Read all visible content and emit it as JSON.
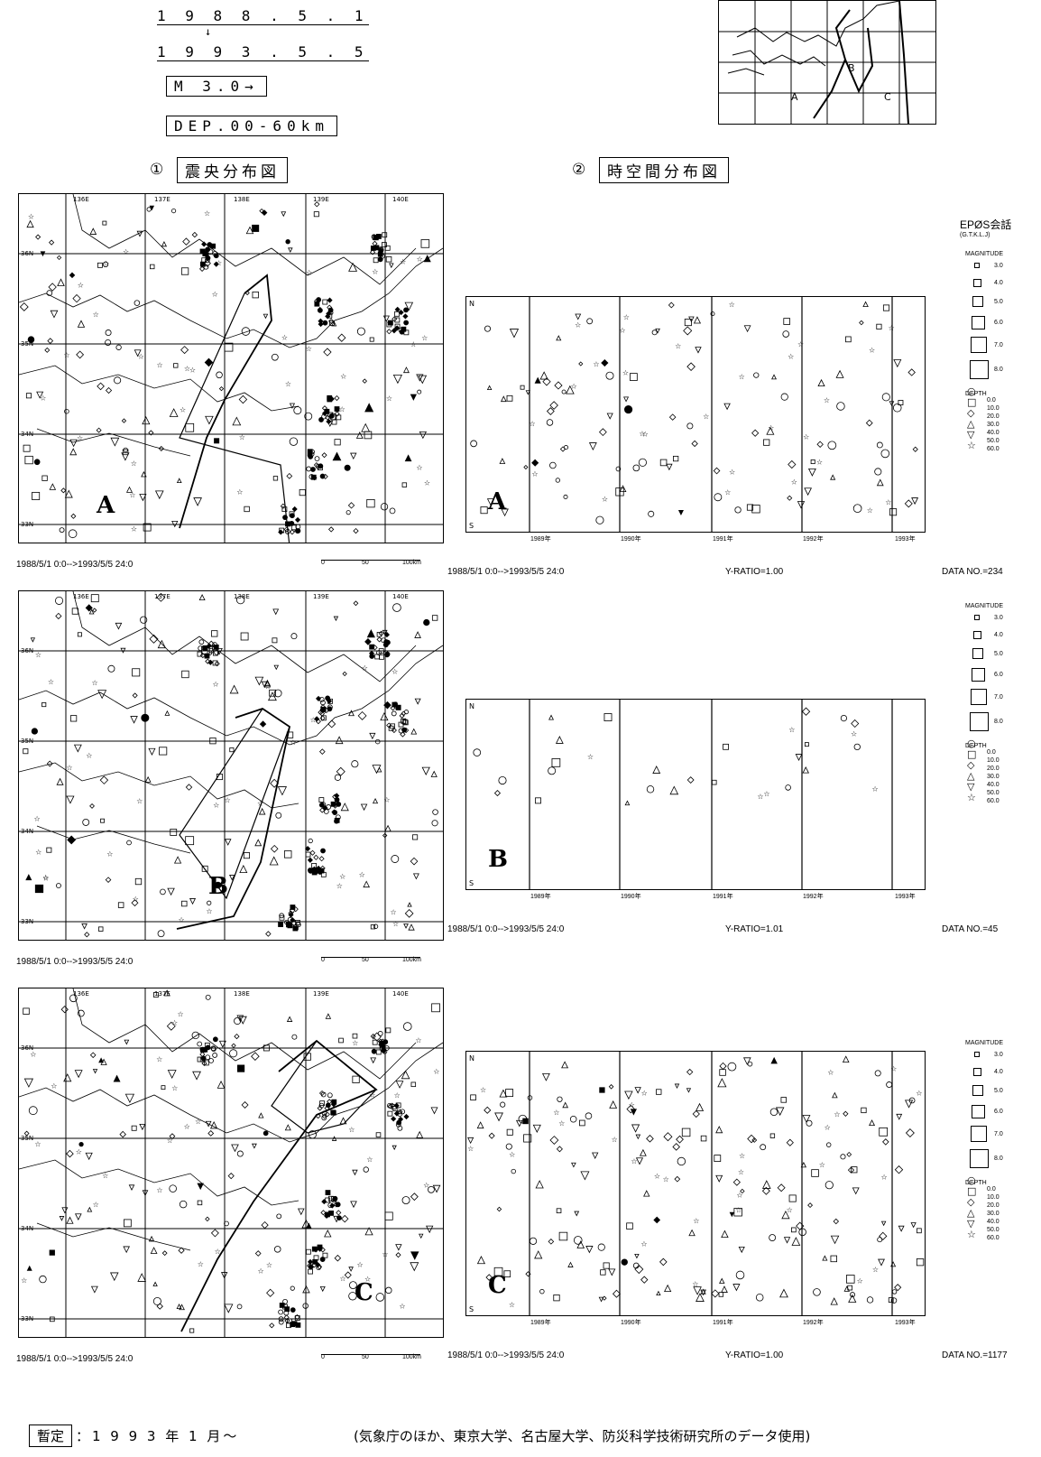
{
  "header": {
    "start_date": "1 9 8 8 . 5 . 1",
    "arrow": "↓",
    "end_date": "1 9 9 3 . 5 . 5",
    "magnitude": "M 3.0→",
    "depth": "DEP.00-60km"
  },
  "sections": {
    "epicenter": {
      "num": "①",
      "title": "震央分布図"
    },
    "spacetime": {
      "num": "②",
      "title": "時空間分布図"
    }
  },
  "index_map": {
    "regions": [
      "A",
      "B",
      "C"
    ]
  },
  "legend": {
    "title": "EPØS会話",
    "subtitle": "(G.T.K.L.J)",
    "magnitude_label": "MAGNITUDE",
    "magnitudes": [
      "3.0",
      "4.0",
      "5.0",
      "6.0",
      "7.0",
      "8.0"
    ],
    "depth_label": "DEPTH",
    "depths": [
      "0.0",
      "10.0",
      "20.0",
      "30.0",
      "40.0",
      "50.0",
      "60.0"
    ]
  },
  "maps": {
    "lon_labels": [
      "136E",
      "137E",
      "138E",
      "139E",
      "140E"
    ],
    "lat_labels": [
      "36N",
      "35N",
      "34N",
      "33N"
    ],
    "scale": [
      "0",
      "50",
      "100km"
    ]
  },
  "panels": [
    {
      "letter": "A",
      "map_caption": "1988/5/1 0:0-->1993/5/5 24:0",
      "ts_caption": "1988/5/1 0:0-->1993/5/5 24:0",
      "ratio": "Y-RATIO=1.00",
      "data_no": "DATA NO.=234",
      "north": "N",
      "south": "S",
      "years": [
        "1989年",
        "1990年",
        "1991年",
        "1992年",
        "1993年"
      ]
    },
    {
      "letter": "B",
      "map_caption": "1988/5/1 0:0-->1993/5/5 24:0",
      "ts_caption": "1988/5/1 0:0-->1993/5/5 24:0",
      "ratio": "Y-RATIO=1.01",
      "data_no": "DATA NO.=45",
      "north": "N",
      "south": "S",
      "years": [
        "1989年",
        "1990年",
        "1991年",
        "1992年",
        "1993年"
      ]
    },
    {
      "letter": "C",
      "map_caption": "1988/5/1 0:0-->1993/5/5 24:0",
      "ts_caption": "1988/5/1 0:0-->1993/5/5 24:0",
      "ratio": "Y-RATIO=1.00",
      "data_no": "DATA NO.=1177",
      "north": "N",
      "south": "S",
      "years": [
        "1989年",
        "1990年",
        "1991年",
        "1992年",
        "1993年"
      ]
    }
  ],
  "footer": {
    "provisional": "暫定",
    "period": "：1 9 9 3 年 1 月～",
    "credit": "(気象庁のほか、東京大学、名古屋大学、防災科学技術研究所のデータ使用)"
  }
}
